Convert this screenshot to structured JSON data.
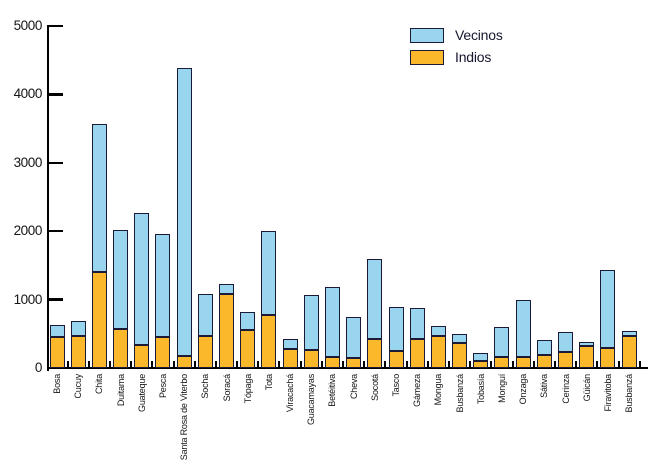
{
  "chart_data": {
    "type": "bar",
    "stacked": true,
    "title": "",
    "xlabel": "",
    "ylabel": "",
    "ylim": [
      0,
      5000
    ],
    "yticks": [
      0,
      1000,
      2000,
      3000,
      4000,
      5000
    ],
    "grid": false,
    "legend_position": "top-right",
    "bar_border_color": "#1b1b38",
    "axis_color": "#000000",
    "categories": [
      "Bosa",
      "Cucuy",
      "Chita",
      "Duitama",
      "Guateque",
      "Pesca",
      "Santa Rosa de Viterbo",
      "Socha",
      "Soracá",
      "Tópaga",
      "Tota",
      "Viracachá",
      "Guacamayas",
      "Betéitiva",
      "Cheva",
      "Socotá",
      "Tasco",
      "Gámeza",
      "Mongua",
      "Busbanzá",
      "Tobasía",
      "Monguí",
      "Onzaga",
      "Sátiva",
      "Cerinza",
      "Güicán",
      "Firavitoba",
      "Busbanzá"
    ],
    "series": [
      {
        "name": "Vecinos",
        "color": "#9ad5f0",
        "values": [
          180,
          220,
          2150,
          1450,
          1930,
          1510,
          4215,
          605,
          150,
          270,
          1230,
          150,
          795,
          1020,
          600,
          1180,
          635,
          445,
          150,
          135,
          110,
          440,
          830,
          225,
          300,
          60,
          1140,
          70
        ]
      },
      {
        "name": "Indios",
        "color": "#fbb82a",
        "values": [
          450,
          470,
          1410,
          570,
          330,
          450,
          170,
          475,
          1075,
          550,
          770,
          280,
          270,
          160,
          140,
          420,
          255,
          425,
          470,
          365,
          105,
          165,
          165,
          185,
          230,
          315,
          290,
          470
        ]
      }
    ],
    "stack_order_bottom_to_top": [
      "Indios",
      "Vecinos"
    ]
  },
  "legend": {
    "items": [
      {
        "label": "Vecinos"
      },
      {
        "label": "Indios"
      }
    ]
  }
}
